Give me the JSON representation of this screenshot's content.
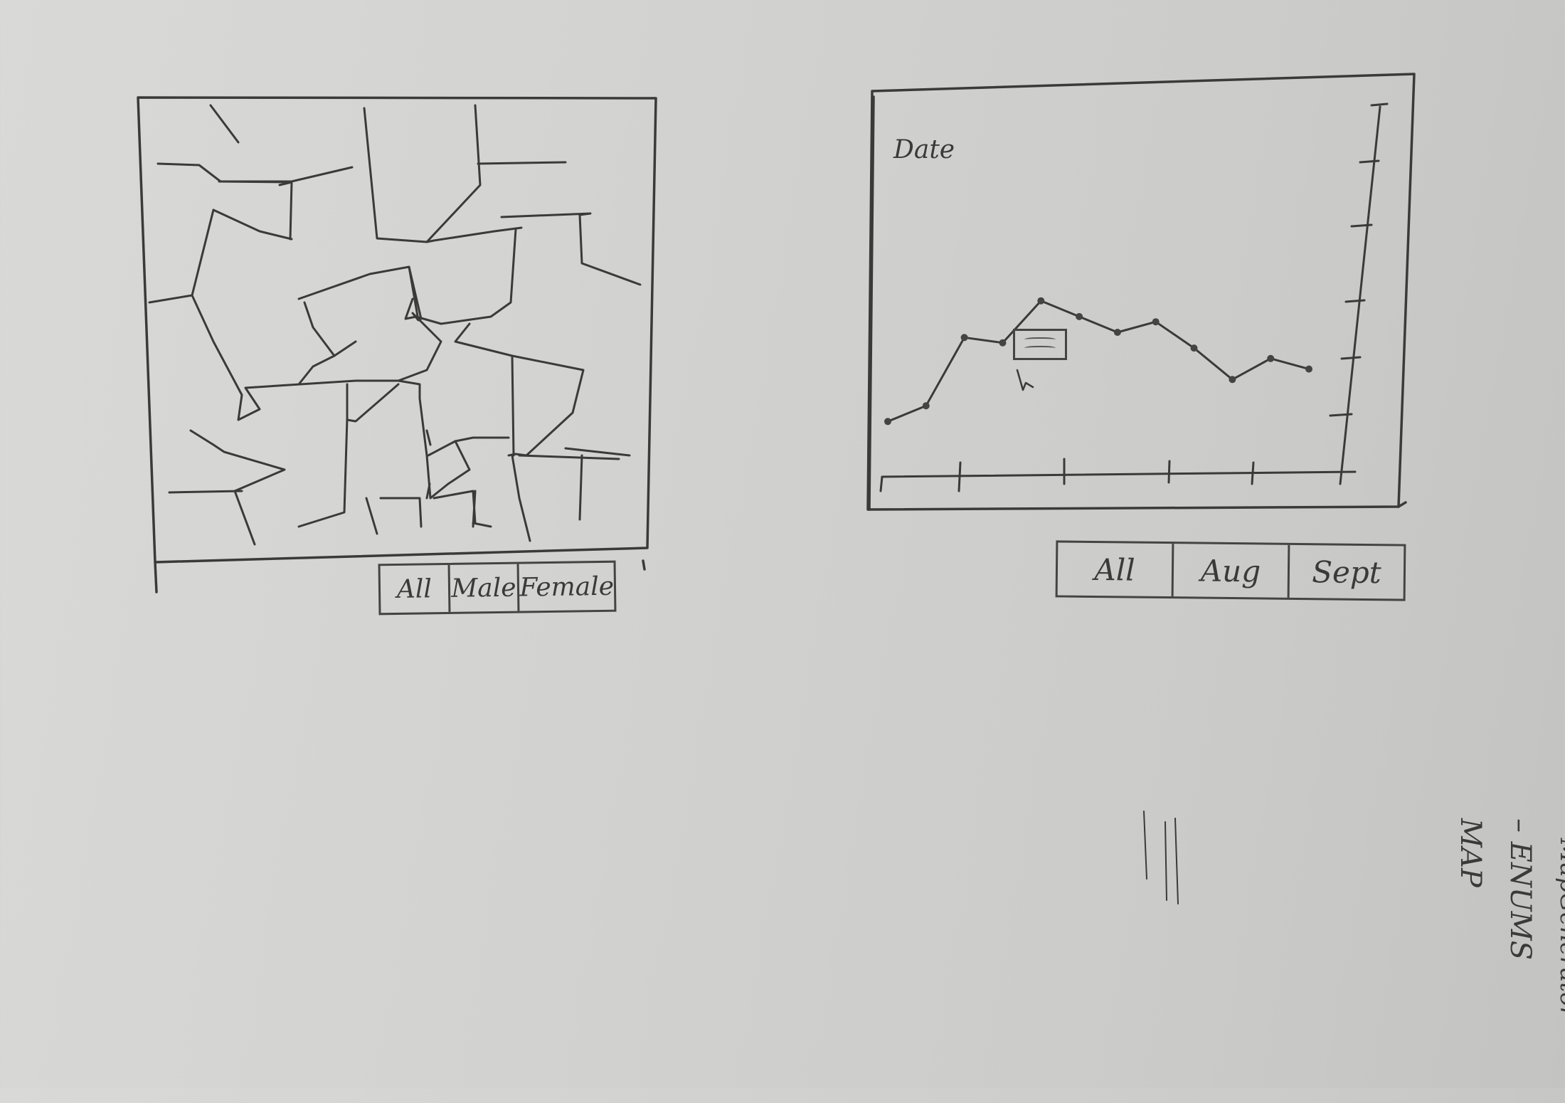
{
  "map_panel": {
    "filters": [
      "All",
      "Male",
      "Female"
    ]
  },
  "chart_panel": {
    "title": "Date",
    "filters": [
      "All",
      "Aug",
      "Sept"
    ]
  },
  "notes": {
    "line1": "MAP",
    "line2": "– ENUMS",
    "line3": "– MapGenerator",
    "line4": "–"
  },
  "chart_data": {
    "type": "line",
    "title": "Date",
    "xlabel": "",
    "ylabel": "",
    "x": [
      1,
      2,
      3,
      4,
      5,
      6,
      7,
      8,
      9,
      10,
      11,
      12
    ],
    "series": [
      {
        "values": [
          1.0,
          1.3,
          2.6,
          2.5,
          3.3,
          3.0,
          2.7,
          2.9,
          2.4,
          1.8,
          2.2,
          2.0
        ]
      }
    ],
    "ylim": [
      0,
      7
    ],
    "grid": false
  }
}
